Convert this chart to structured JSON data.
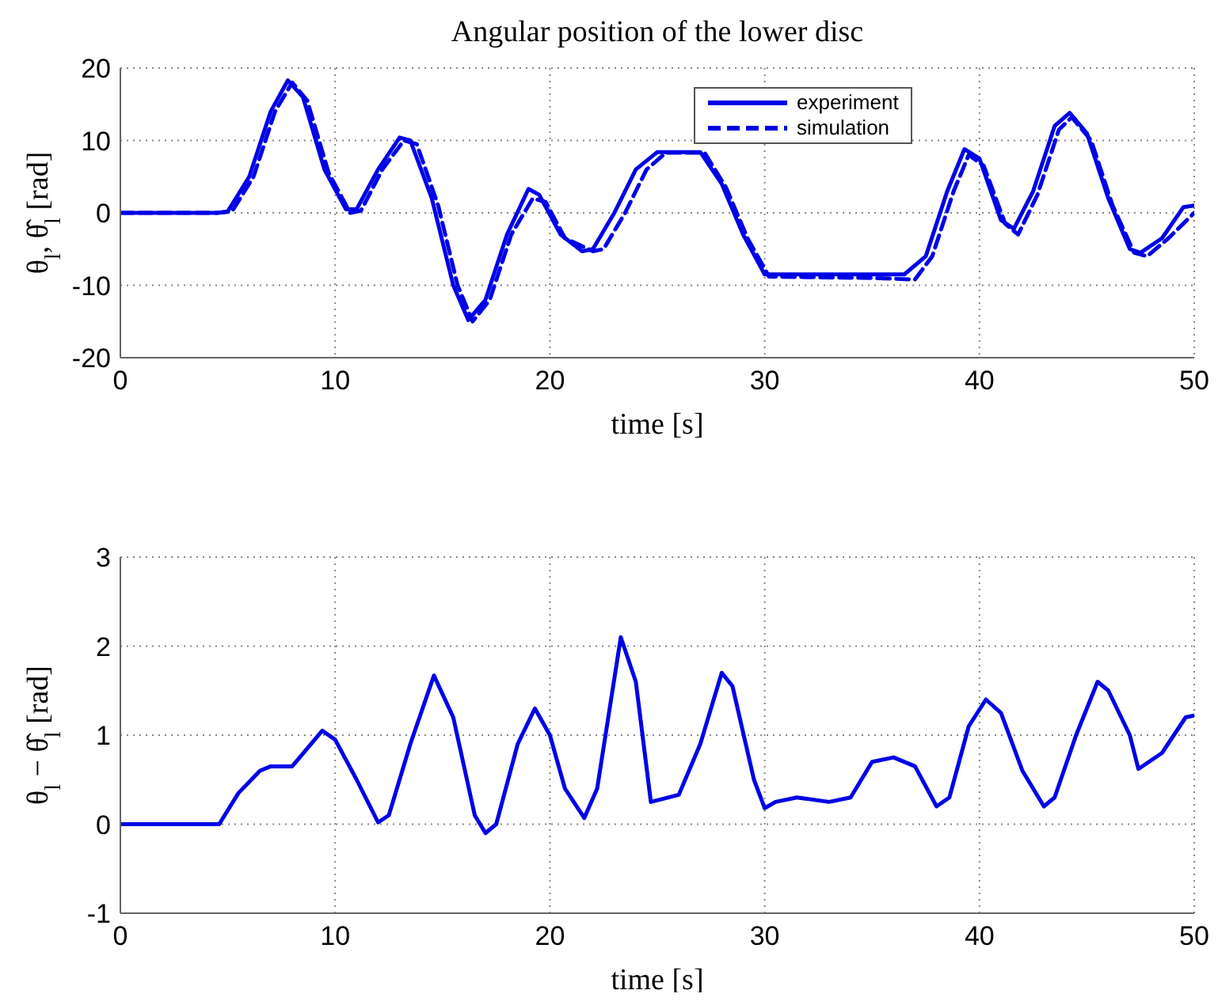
{
  "chart_data": [
    {
      "type": "line",
      "title": "Angular position of the lower disc",
      "xlabel": "time [s]",
      "ylabel": "θ$_{l}$, θ̂$_{l}$ [rad]",
      "xlim": [
        0,
        50
      ],
      "xticks": [
        0,
        10,
        20,
        30,
        40,
        50
      ],
      "ylim": [
        -20,
        20
      ],
      "yticks": [
        -20,
        -10,
        0,
        10,
        20
      ],
      "grid": true,
      "legend": "top right",
      "marker": "none",
      "series": [
        {
          "name": "experiment",
          "color": "#0000e6",
          "line_style": "solid",
          "x": [
            0,
            4.5,
            5,
            6,
            7,
            7.8,
            8.5,
            9.5,
            10.5,
            11,
            12,
            13,
            13.5,
            14.5,
            15.5,
            16.2,
            17,
            18,
            19,
            19.5,
            20.5,
            21.5,
            22,
            23,
            24,
            25,
            27,
            28,
            29,
            30,
            36.5,
            37.5,
            38.5,
            39.3,
            40,
            41,
            41.6,
            42.5,
            43.5,
            44.2,
            45,
            46,
            47,
            47.5,
            48.5,
            49.5,
            50
          ],
          "values": [
            0,
            0,
            0.2,
            5,
            14,
            18.3,
            16,
            6,
            0.5,
            0.5,
            6,
            10.4,
            10,
            2,
            -10,
            -14.8,
            -12,
            -3,
            3.3,
            2.5,
            -3,
            -5.3,
            -5,
            0,
            6,
            8.4,
            8.4,
            4,
            -3,
            -8.5,
            -8.5,
            -6,
            3,
            8.8,
            7.5,
            -1,
            -2.2,
            3,
            12,
            13.8,
            11,
            2,
            -5,
            -5.5,
            -3.5,
            0.8,
            1
          ]
        },
        {
          "name": "simulation",
          "color": "#0000e6",
          "line_style": "dashed",
          "x": [
            0,
            4.5,
            5.2,
            6.2,
            7.2,
            8,
            8.7,
            9.7,
            10.7,
            11.2,
            12.2,
            13.2,
            13.8,
            14.8,
            15.7,
            16.4,
            17.2,
            18.2,
            19.2,
            19.8,
            20.7,
            22,
            22.5,
            23.5,
            24.5,
            25.4,
            27.2,
            28.2,
            29.2,
            30.2,
            35,
            37,
            37.8,
            38.8,
            39.5,
            40.2,
            41.2,
            41.8,
            42.7,
            43.7,
            44.3,
            45.2,
            46.2,
            47.2,
            47.8,
            48.8,
            50
          ],
          "values": [
            0,
            0,
            0.2,
            5,
            14,
            18,
            15.5,
            5.5,
            0,
            0.3,
            6,
            10,
            9.5,
            1,
            -10,
            -15,
            -12,
            -3,
            2,
            1.5,
            -3.5,
            -5.3,
            -5,
            0,
            6,
            8.3,
            8.3,
            3.5,
            -3.5,
            -8.8,
            -9,
            -9.2,
            -6,
            3,
            8,
            6.5,
            -1.5,
            -3,
            2.5,
            11.5,
            13.2,
            10,
            1,
            -5.5,
            -6,
            -3.5,
            0
          ]
        }
      ]
    },
    {
      "type": "line",
      "xlabel": "time [s]",
      "ylabel": "θ$_{l}$ − θ̂$_{l}$ [rad]",
      "xlim": [
        0,
        50
      ],
      "xticks": [
        0,
        10,
        20,
        30,
        40,
        50
      ],
      "ylim": [
        -1,
        3
      ],
      "yticks": [
        -1,
        0,
        1,
        2,
        3
      ],
      "grid": true,
      "marker": "none",
      "line_style": "solid",
      "series": [
        {
          "color": "#0000e6",
          "x": [
            0,
            4.6,
            5.5,
            6.5,
            7,
            8,
            9.4,
            10,
            11,
            12,
            12.5,
            13.5,
            14.6,
            15.5,
            16.5,
            17,
            17.5,
            18.5,
            19.3,
            20,
            20.7,
            21.6,
            22.2,
            23.3,
            24,
            24.7,
            26,
            27,
            28,
            28.5,
            29.5,
            30,
            30.5,
            31.5,
            33,
            34,
            35,
            36,
            37,
            38,
            38.6,
            39.5,
            40.3,
            41,
            42,
            43,
            43.5,
            44.5,
            45.5,
            46,
            47,
            47.4,
            48.5,
            49.6,
            50
          ],
          "values": [
            0,
            0,
            0.35,
            0.6,
            0.65,
            0.65,
            1.05,
            0.95,
            0.5,
            0.02,
            0.1,
            0.9,
            1.67,
            1.2,
            0.1,
            -0.1,
            0,
            0.9,
            1.3,
            1,
            0.4,
            0.07,
            0.4,
            2.1,
            1.6,
            0.25,
            0.33,
            0.9,
            1.7,
            1.55,
            0.5,
            0.18,
            0.25,
            0.3,
            0.25,
            0.3,
            0.7,
            0.75,
            0.65,
            0.2,
            0.3,
            1.1,
            1.4,
            1.25,
            0.6,
            0.2,
            0.3,
            1,
            1.6,
            1.5,
            1,
            0.62,
            0.8,
            1.2,
            1.22
          ]
        }
      ]
    }
  ]
}
